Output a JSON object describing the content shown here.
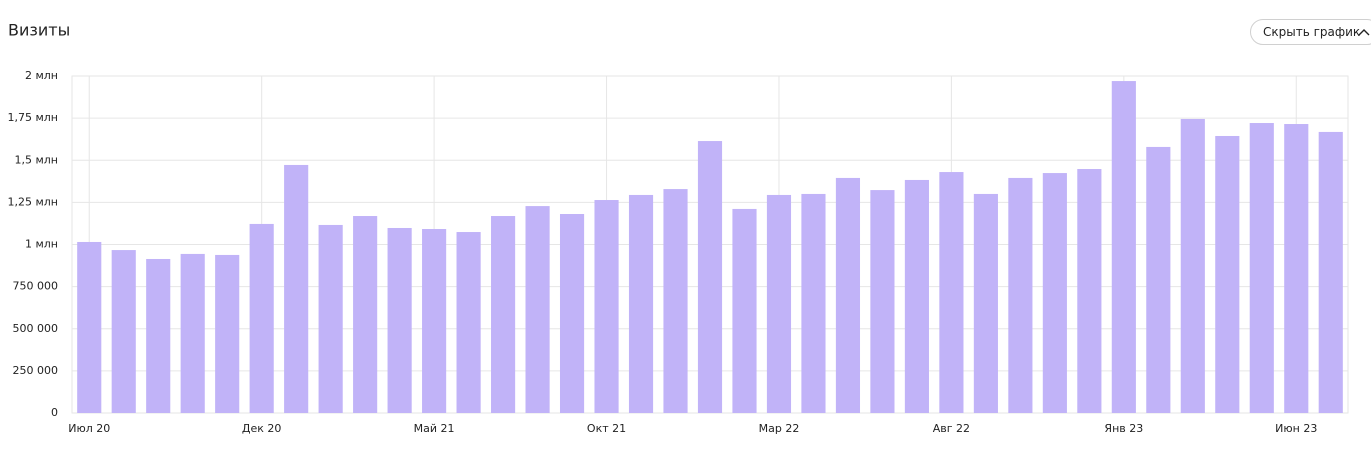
{
  "header": {
    "button": "Скрыть график"
  },
  "chart_data": {
    "type": "bar",
    "title": "Визиты",
    "categories": [
      "Июл 20",
      null,
      null,
      null,
      null,
      "Дек 20",
      null,
      null,
      null,
      null,
      "Май 21",
      null,
      null,
      null,
      null,
      "Окт 21",
      null,
      null,
      null,
      null,
      "Мар 22",
      null,
      null,
      null,
      null,
      "Авг 22",
      null,
      null,
      null,
      null,
      "Янв 23",
      null,
      null,
      null,
      null,
      "Июн 23",
      null
    ],
    "values": [
      1015000,
      967000,
      914000,
      944000,
      938000,
      1122000,
      1472000,
      1116000,
      1169000,
      1098000,
      1092000,
      1074000,
      1169000,
      1228000,
      1181000,
      1264000,
      1294000,
      1329000,
      1614000,
      1211000,
      1294000,
      1300000,
      1395000,
      1323000,
      1383000,
      1430000,
      1300000,
      1395000,
      1424000,
      1448000,
      1970000,
      1579000,
      1745000,
      1644000,
      1721000,
      1715000,
      1668000
    ],
    "color": "#c1b3f8",
    "ylim": [
      0,
      2000000
    ],
    "yticks": [
      0,
      {
        "value": 250000,
        "label": "250 000"
      },
      {
        "value": 500000,
        "label": "500 000"
      },
      {
        "value": 750000,
        "label": "750 000"
      },
      {
        "value": 1000000,
        "label": "1 млн"
      },
      {
        "value": 1250000,
        "label": "1,25 млн"
      },
      {
        "value": 1500000,
        "label": "1,5 млн"
      },
      {
        "value": 1750000,
        "label": "1,75 млн"
      },
      {
        "value": 2000000,
        "label": "2 млн"
      }
    ],
    "grid": true
  }
}
